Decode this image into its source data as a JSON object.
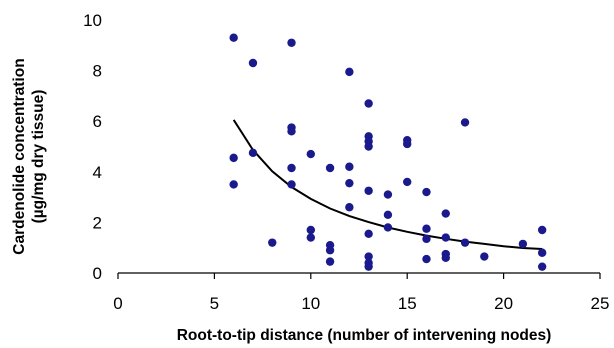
{
  "chart_data": {
    "type": "scatter",
    "xlabel": "Root-to-tip distance (number of intervening nodes)",
    "ylabel_line1": "Cardenolide concentration",
    "ylabel_line2": "(µg/mg dry tissue)",
    "xlim": [
      0,
      25
    ],
    "ylim": [
      0,
      10
    ],
    "x_ticks": [
      0,
      5,
      10,
      15,
      20,
      25
    ],
    "y_ticks": [
      0,
      2,
      4,
      6,
      8,
      10
    ],
    "grid": false,
    "marker_color": "#1a1a8c",
    "trend_color": "#000000",
    "points": [
      {
        "x": 6,
        "y": 9.3
      },
      {
        "x": 6,
        "y": 4.55
      },
      {
        "x": 6,
        "y": 3.5
      },
      {
        "x": 7,
        "y": 8.3
      },
      {
        "x": 7,
        "y": 4.75
      },
      {
        "x": 8,
        "y": 1.2
      },
      {
        "x": 9,
        "y": 9.1
      },
      {
        "x": 9,
        "y": 5.75
      },
      {
        "x": 9,
        "y": 5.6
      },
      {
        "x": 9,
        "y": 4.15
      },
      {
        "x": 9,
        "y": 3.5
      },
      {
        "x": 10,
        "y": 4.7
      },
      {
        "x": 10,
        "y": 1.7
      },
      {
        "x": 10,
        "y": 1.4
      },
      {
        "x": 11,
        "y": 4.15
      },
      {
        "x": 11,
        "y": 1.1
      },
      {
        "x": 11,
        "y": 0.9
      },
      {
        "x": 11,
        "y": 0.45
      },
      {
        "x": 12,
        "y": 7.95
      },
      {
        "x": 12,
        "y": 4.2
      },
      {
        "x": 12,
        "y": 3.55
      },
      {
        "x": 12,
        "y": 2.6
      },
      {
        "x": 13,
        "y": 6.7
      },
      {
        "x": 13,
        "y": 5.4
      },
      {
        "x": 13,
        "y": 5.2
      },
      {
        "x": 13,
        "y": 5.0
      },
      {
        "x": 13,
        "y": 3.25
      },
      {
        "x": 13,
        "y": 1.55
      },
      {
        "x": 13,
        "y": 0.65
      },
      {
        "x": 13,
        "y": 0.4
      },
      {
        "x": 13,
        "y": 0.25
      },
      {
        "x": 14,
        "y": 3.1
      },
      {
        "x": 14,
        "y": 2.3
      },
      {
        "x": 14,
        "y": 1.8
      },
      {
        "x": 15,
        "y": 5.25
      },
      {
        "x": 15,
        "y": 5.1
      },
      {
        "x": 15,
        "y": 3.6
      },
      {
        "x": 16,
        "y": 3.2
      },
      {
        "x": 16,
        "y": 1.75
      },
      {
        "x": 16,
        "y": 1.35
      },
      {
        "x": 16,
        "y": 0.55
      },
      {
        "x": 17,
        "y": 2.35
      },
      {
        "x": 17,
        "y": 1.4
      },
      {
        "x": 17,
        "y": 0.75
      },
      {
        "x": 17,
        "y": 0.6
      },
      {
        "x": 18,
        "y": 5.95
      },
      {
        "x": 18,
        "y": 1.2
      },
      {
        "x": 19,
        "y": 0.65
      },
      {
        "x": 21,
        "y": 1.15
      },
      {
        "x": 22,
        "y": 1.7
      },
      {
        "x": 22,
        "y": 0.8
      },
      {
        "x": 22,
        "y": 0.25
      }
    ],
    "trendline": {
      "type": "power",
      "x": [
        6,
        7,
        8,
        9,
        10,
        11,
        12,
        13,
        14,
        15,
        16,
        17,
        18,
        19,
        20,
        21,
        22
      ],
      "y": [
        6.05,
        4.86,
        4.02,
        3.4,
        2.93,
        2.55,
        2.25,
        2.01,
        1.8,
        1.63,
        1.48,
        1.35,
        1.24,
        1.15,
        1.06,
        0.99,
        0.95
      ]
    }
  }
}
